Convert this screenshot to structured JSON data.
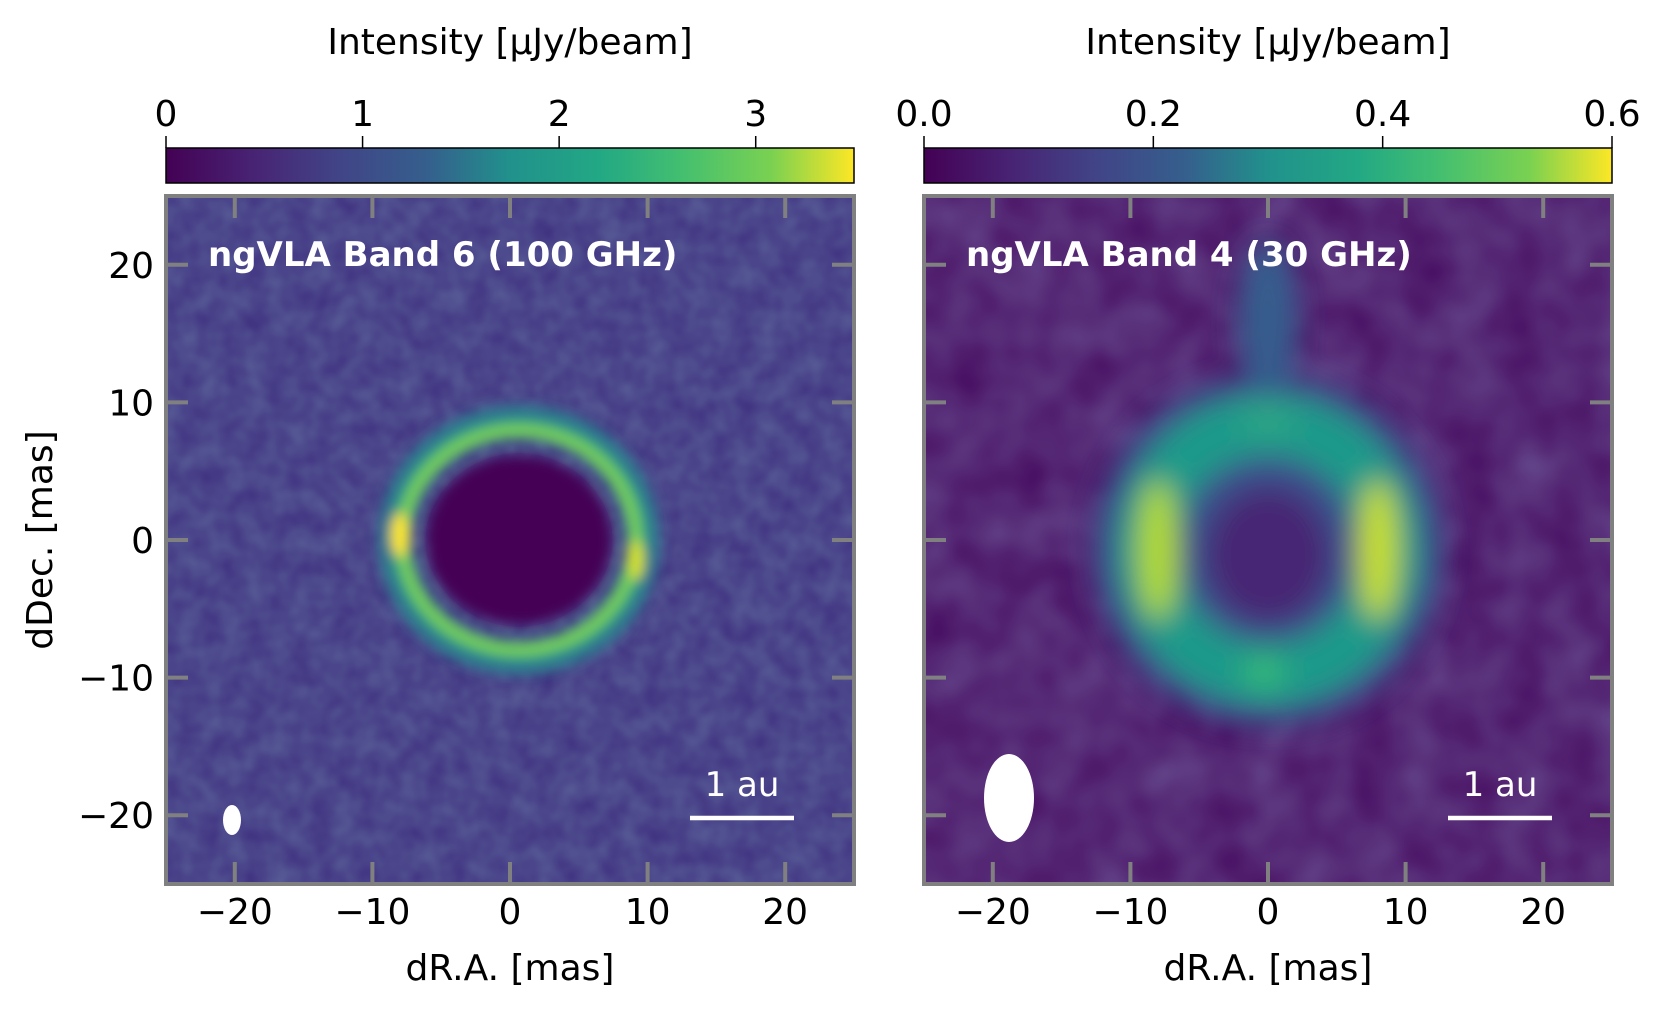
{
  "figure": {
    "panels": [
      {
        "title": "ngVLA Band 6 (100 GHz)",
        "colorbar": {
          "label": "Intensity [μJy/beam]",
          "range": [
            0,
            3.5
          ],
          "ticks": [
            "0",
            "1",
            "2",
            "3"
          ],
          "tick_values": [
            0,
            1,
            2,
            3
          ]
        },
        "scalebar_label": "1 au",
        "xlabel": "dR.A. [mas]",
        "ylabel": "dDec. [mas]"
      },
      {
        "title": "ngVLA Band 4 (30 GHz)",
        "colorbar": {
          "label": "Intensity [μJy/beam]",
          "range": [
            0,
            0.6
          ],
          "ticks": [
            "0.0",
            "0.2",
            "0.4",
            "0.6"
          ],
          "tick_values": [
            0,
            0.2,
            0.4,
            0.6
          ]
        },
        "scalebar_label": "1 au",
        "xlabel": "dR.A. [mas]",
        "ylabel": ""
      }
    ],
    "colormap": "viridis",
    "colors": {
      "frame": "#808080",
      "label_text": "#ffffff",
      "axis_text": "#000000"
    }
  },
  "chart_data": [
    {
      "type": "heatmap",
      "title": "ngVLA Band 6 (100 GHz)",
      "xlabel": "dR.A. [mas]",
      "ylabel": "dDec. [mas]",
      "xlim": [
        -25,
        25
      ],
      "ylim": [
        -25,
        25
      ],
      "xticks": [
        -20,
        -10,
        0,
        10,
        20
      ],
      "yticks": [
        -20,
        -10,
        0,
        10,
        20
      ],
      "colorbar_label": "Intensity [μJy/beam]",
      "colorbar_range": [
        0,
        3.5
      ],
      "colorbar_ticks": [
        0,
        1,
        2,
        3
      ],
      "colormap": "viridis",
      "features": {
        "ring": {
          "center": [
            0.8,
            0
          ],
          "radius_x": 8.5,
          "radius_y": 8.0,
          "peak_intensity": 3.4,
          "peak_locations_mas": [
            [
              -8,
              0.5
            ],
            [
              9,
              -1.5
            ]
          ]
        },
        "background_intensity": 0.6,
        "beam": {
          "center": [
            -20,
            -20
          ],
          "major": 1.2,
          "minor": 0.7
        },
        "scalebar": {
          "label": "1 au",
          "x_range": [
            13,
            20.5
          ],
          "y": -20
        }
      }
    },
    {
      "type": "heatmap",
      "title": "ngVLA Band 4 (30 GHz)",
      "xlabel": "dR.A. [mas]",
      "ylabel": "",
      "xlim": [
        -25,
        25
      ],
      "ylim": [
        -25,
        25
      ],
      "xticks": [
        -20,
        -10,
        0,
        10,
        20
      ],
      "yticks": [
        -20,
        -10,
        0,
        10,
        20
      ],
      "colorbar_label": "Intensity [μJy/beam]",
      "colorbar_range": [
        0,
        0.6
      ],
      "colorbar_ticks": [
        0,
        0.2,
        0.4,
        0.6
      ],
      "colormap": "viridis",
      "features": {
        "ring": {
          "center": [
            0,
            -1
          ],
          "radius_x": 8.8,
          "radius_y": 9.0,
          "peak_intensity": 0.58,
          "peak_locations_mas": [
            [
              -8.5,
              0
            ],
            [
              8.5,
              0
            ]
          ]
        },
        "background_intensity": 0.03,
        "beam": {
          "center": [
            -19,
            -19
          ],
          "major": 3.2,
          "minor": 1.8
        },
        "scalebar": {
          "label": "1 au",
          "x_range": [
            13,
            20.5
          ],
          "y": -20
        }
      }
    }
  ]
}
